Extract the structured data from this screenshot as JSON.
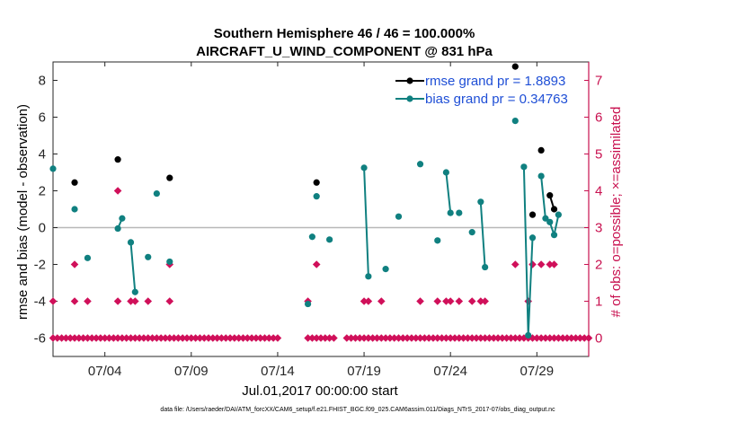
{
  "chart_data": {
    "type": "line",
    "title": "Southern Hemisphere 46 / 46 = 100.000%",
    "subtitle": "AIRCRAFT_U_WIND_COMPONENT @ 831 hPa",
    "xlabel": "Jul.01,2017 00:00:00 start",
    "ylabel_left": "rmse and bias (model - observation)",
    "ylabel_right": "# of obs: o=possible; ×=assimilated",
    "footnote": "data file: /Users/raeder/DAI/ATM_forcXX/CAM6_setup/f.e21.FHIST_BGC.f09_025.CAM6assim.011/Diags_NTrS_2017-07/obs_diag_output.nc",
    "xlim": [
      1,
      32
    ],
    "ylim_left": [
      -7,
      9
    ],
    "ylim_right": [
      -0.5,
      7.5
    ],
    "x_ticks": [
      {
        "x": 4,
        "label": "07/04"
      },
      {
        "x": 9,
        "label": "07/09"
      },
      {
        "x": 14,
        "label": "07/14"
      },
      {
        "x": 19,
        "label": "07/19"
      },
      {
        "x": 24,
        "label": "07/24"
      },
      {
        "x": 29,
        "label": "07/29"
      }
    ],
    "y_ticks_left": [
      "-6",
      "-4",
      "-2",
      "0",
      "2",
      "4",
      "6",
      "8"
    ],
    "y_ticks_right": [
      "0",
      "1",
      "2",
      "3",
      "4",
      "5",
      "6",
      "7"
    ],
    "legend": {
      "position": "top-right",
      "entries": [
        {
          "label": "rmse grand pr = 1.8893",
          "color": "#000000"
        },
        {
          "label": "bias grand pr = 0.34763",
          "color": "#008080"
        }
      ]
    },
    "colors": {
      "rmse": "#000000",
      "bias": "#108080",
      "obs": "#d0105a",
      "right_axis": "#c8104f",
      "zero_line": "#b8b8b8"
    },
    "series": [
      {
        "name": "rmse",
        "segments": [
          [
            [
              2.25,
              2.45
            ]
          ],
          [
            [
              4.75,
              3.7
            ]
          ],
          [
            [
              7.75,
              2.7
            ]
          ],
          [
            [
              16.25,
              2.45
            ]
          ],
          [
            [
              27.75,
              8.75
            ]
          ],
          [
            [
              28.75,
              0.7
            ]
          ],
          [
            [
              29.25,
              4.2
            ]
          ],
          [
            [
              29.75,
              1.75
            ],
            [
              30.0,
              1.0
            ]
          ]
        ]
      },
      {
        "name": "bias",
        "segments": [
          [
            [
              1.0,
              3.2
            ]
          ],
          [
            [
              2.25,
              1.0
            ]
          ],
          [
            [
              3.0,
              -1.65
            ]
          ],
          [
            [
              4.75,
              -0.05
            ],
            [
              5.0,
              0.5
            ]
          ],
          [
            [
              5.5,
              -0.8
            ],
            [
              5.75,
              -3.5
            ]
          ],
          [
            [
              6.5,
              -1.6
            ]
          ],
          [
            [
              7.0,
              1.85
            ]
          ],
          [
            [
              7.75,
              -1.85
            ]
          ],
          [
            [
              15.75,
              -4.15
            ]
          ],
          [
            [
              16.0,
              -0.5
            ]
          ],
          [
            [
              16.25,
              1.7
            ]
          ],
          [
            [
              17.0,
              -0.65
            ]
          ],
          [
            [
              19.0,
              3.25
            ],
            [
              19.25,
              -2.65
            ]
          ],
          [
            [
              20.25,
              -2.25
            ]
          ],
          [
            [
              21.0,
              0.6
            ]
          ],
          [
            [
              22.25,
              3.45
            ]
          ],
          [
            [
              23.25,
              -0.7
            ]
          ],
          [
            [
              23.75,
              3.0
            ],
            [
              24.0,
              0.8
            ]
          ],
          [
            [
              24.5,
              0.8
            ]
          ],
          [
            [
              25.25,
              -0.25
            ]
          ],
          [
            [
              25.75,
              1.4
            ],
            [
              26.0,
              -2.15
            ]
          ],
          [
            [
              27.75,
              5.8
            ]
          ],
          [
            [
              28.25,
              3.3
            ],
            [
              28.5,
              -5.85
            ],
            [
              28.75,
              -0.55
            ]
          ],
          [
            [
              29.25,
              2.8
            ],
            [
              29.5,
              0.5
            ]
          ],
          [
            [
              29.75,
              0.3
            ],
            [
              30.0,
              -0.4
            ],
            [
              30.25,
              0.7
            ]
          ]
        ]
      }
    ],
    "obs_markers": {
      "name": "obs count (right axis)",
      "zero_x_start": 1.0,
      "zero_x_end": 32.0,
      "zero_step": 0.25,
      "zero_gaps": [
        [
          14.0,
          15.7
        ],
        [
          17.25,
          18.0
        ]
      ],
      "points": [
        [
          1.0,
          1
        ],
        [
          2.25,
          2
        ],
        [
          2.25,
          1
        ],
        [
          3.0,
          1
        ],
        [
          4.75,
          4
        ],
        [
          4.75,
          1
        ],
        [
          5.5,
          1
        ],
        [
          5.75,
          1
        ],
        [
          6.5,
          1
        ],
        [
          7.75,
          2
        ],
        [
          7.75,
          1
        ],
        [
          15.75,
          1
        ],
        [
          16.25,
          2
        ],
        [
          19.0,
          1
        ],
        [
          19.25,
          1
        ],
        [
          20.0,
          1
        ],
        [
          22.25,
          1
        ],
        [
          23.25,
          1
        ],
        [
          23.75,
          1
        ],
        [
          24.0,
          1
        ],
        [
          24.5,
          1
        ],
        [
          25.25,
          1
        ],
        [
          25.75,
          1
        ],
        [
          26.0,
          1
        ],
        [
          27.75,
          2
        ],
        [
          28.5,
          1
        ],
        [
          28.75,
          2
        ],
        [
          29.25,
          2
        ],
        [
          29.75,
          2
        ],
        [
          30.0,
          2
        ]
      ]
    }
  }
}
